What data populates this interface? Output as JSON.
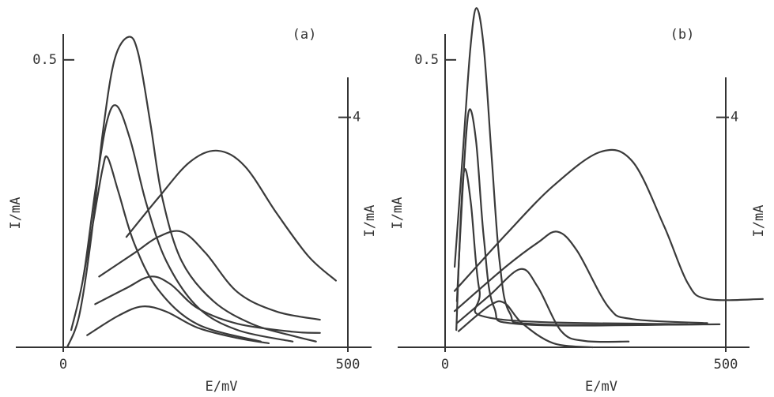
{
  "chart_data": [
    {
      "type": "line",
      "title": "(a)",
      "xlabel": "E/mV",
      "ylabel": "I/mA",
      "y2label": "I/mA",
      "xlim": [
        0,
        500
      ],
      "xticks": [
        0,
        500
      ],
      "ylim": [
        0,
        0.6
      ],
      "yticks": [
        0.5
      ],
      "y2lim": [
        0,
        6
      ],
      "y2ticks": [
        4
      ],
      "series": [
        {
          "color": "#3a3a3a",
          "x": [
            7,
            28,
            49,
            69,
            90,
            115,
            132,
            153,
            174,
            208,
            264,
            333,
            403,
            444
          ],
          "values": [
            0,
            0.055,
            0.19,
            0.37,
            0.5,
            0.54,
            0.51,
            0.39,
            0.26,
            0.15,
            0.08,
            0.04,
            0.02,
            0.01
          ]
        },
        {
          "color": "#3a3a3a",
          "x": [
            14,
            35,
            56,
            76,
            94,
            118,
            146,
            181,
            236,
            306,
            403
          ],
          "values": [
            0.03,
            0.12,
            0.27,
            0.39,
            0.42,
            0.36,
            0.25,
            0.15,
            0.07,
            0.03,
            0.01
          ]
        },
        {
          "color": "#3a3a3a",
          "x": [
            35,
            53,
            69,
            78,
            97,
            125,
            167,
            236,
            347
          ],
          "values": [
            0.12,
            0.22,
            0.31,
            0.33,
            0.27,
            0.18,
            0.1,
            0.04,
            0.01
          ]
        },
        {
          "color": "#3a3a3a",
          "axis": "y2",
          "x": [
            111,
            167,
            222,
            271,
            319,
            375,
            431,
            479
          ],
          "values": [
            1.92,
            2.6,
            3.22,
            3.42,
            3.15,
            2.33,
            1.58,
            1.16
          ]
        },
        {
          "color": "#3a3a3a",
          "axis": "y2",
          "x": [
            63,
            125,
            167,
            208,
            250,
            306,
            375,
            451
          ],
          "values": [
            1.23,
            1.64,
            1.92,
            2.01,
            1.64,
            0.96,
            0.62,
            0.48
          ]
        },
        {
          "color": "#3a3a3a",
          "axis": "y2",
          "x": [
            56,
            111,
            153,
            188,
            236,
            306,
            403,
            451
          ],
          "values": [
            0.75,
            1.03,
            1.23,
            1.1,
            0.68,
            0.41,
            0.27,
            0.25
          ]
        },
        {
          "color": "#3a3a3a",
          "axis": "y2",
          "x": [
            42,
            97,
            139,
            181,
            236,
            306,
            361
          ],
          "values": [
            0.21,
            0.55,
            0.71,
            0.62,
            0.34,
            0.16,
            0.07
          ]
        }
      ]
    },
    {
      "type": "line",
      "title": "(b)",
      "xlabel": "E/mV",
      "ylabel": "I/mA",
      "y2label": "I/mA",
      "xlim": [
        0,
        500
      ],
      "xticks": [
        0,
        500
      ],
      "ylim": [
        0,
        0.6
      ],
      "yticks": [
        0.5
      ],
      "y2lim": [
        0,
        6
      ],
      "y2ticks": [
        4
      ],
      "series": [
        {
          "color": "#3a3a3a",
          "x": [
            17,
            31,
            45,
            56,
            69,
            83,
            97,
            115,
            165,
            489
          ],
          "values": [
            0.14,
            0.33,
            0.52,
            0.59,
            0.52,
            0.33,
            0.15,
            0.06,
            0.04,
            0.04
          ]
        },
        {
          "color": "#3a3a3a",
          "x": [
            21,
            31,
            42,
            55,
            69,
            87,
            137,
            460
          ],
          "values": [
            0.08,
            0.27,
            0.41,
            0.36,
            0.19,
            0.07,
            0.04,
            0.04
          ]
        },
        {
          "color": "#3a3a3a",
          "x": [
            20,
            28,
            35,
            46,
            61,
            87,
            432
          ],
          "values": [
            0.03,
            0.23,
            0.31,
            0.25,
            0.1,
            0.05,
            0.04
          ]
        },
        {
          "color": "#3a3a3a",
          "axis": "y2",
          "x": [
            17,
            108,
            193,
            277,
            334,
            390,
            432,
            467,
            566
          ],
          "values": [
            0.98,
            1.96,
            2.81,
            3.4,
            3.23,
            2.11,
            1.12,
            0.84,
            0.84
          ]
        },
        {
          "color": "#3a3a3a",
          "axis": "y2",
          "x": [
            17,
            108,
            165,
            200,
            235,
            291,
            334,
            467
          ],
          "values": [
            0.63,
            1.4,
            1.82,
            2.01,
            1.68,
            0.7,
            0.49,
            0.42
          ]
        },
        {
          "color": "#3a3a3a",
          "axis": "y2",
          "x": [
            21,
            80,
            134,
            165,
            207,
            249,
            327
          ],
          "values": [
            0.42,
            0.91,
            1.36,
            1.05,
            0.28,
            0.11,
            0.1
          ]
        },
        {
          "color": "#3a3a3a",
          "axis": "y2",
          "x": [
            24,
            80,
            106,
            137,
            193,
            263
          ],
          "values": [
            0.28,
            0.73,
            0.77,
            0.42,
            0.07,
            0
          ]
        }
      ]
    }
  ]
}
